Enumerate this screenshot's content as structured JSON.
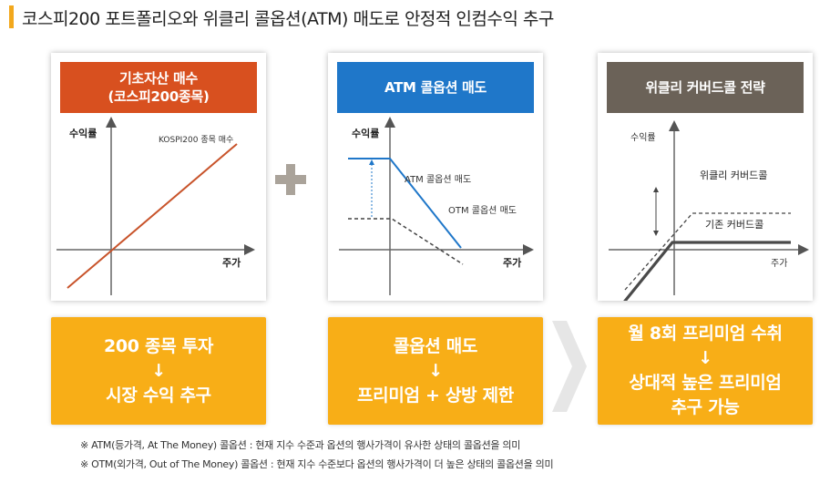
{
  "title": "코스피200 포트폴리오와 위클리 콜옵션(ATM) 매도로 안정적 인컴수익 추구",
  "colors": {
    "accent": "#f2a81d",
    "orange_box": "#f8ae17",
    "header1": "#d8501f",
    "header2": "#1f77c9",
    "header3": "#6b6258"
  },
  "panels": [
    {
      "header_line1": "기초자산 매수",
      "header_line2": "(코스피200종목)",
      "y_label": "수익률",
      "x_label": "주가",
      "line_label": "KOSPI200 종목 매수"
    },
    {
      "header": "ATM 콜옵션 매도",
      "y_label": "수익률",
      "x_label": "주가",
      "atm_label": "ATM 콜옵션 매도",
      "otm_label": "OTM 콜옵션 매도"
    },
    {
      "header": "위클리 커버드콜 전략",
      "y_label": "수익률",
      "x_label": "주가",
      "weekly_label": "위클리 커버드콜",
      "basic_label": "기존 커버드콜"
    }
  ],
  "boxes": [
    {
      "line1": "200 종목 투자",
      "arrow": "↓",
      "line2": "시장 수익 추구"
    },
    {
      "line1": "콜옵션 매도",
      "arrow": "↓",
      "line2": "프리미엄 + 상방 제한"
    },
    {
      "line1": "월 8회 프리미엄 수취",
      "arrow": "↓",
      "line2": "상대적 높은 프리미엄",
      "line3": "추구 가능"
    }
  ],
  "notes": [
    "※ ATM(등가격, At The Money) 콜옵션 : 현재 지수 수준과 옵션의 행사가격이 유사한 상태의 콜옵션을 의미",
    "※ OTM(외가격, Out of The Money) 콜옵션 : 현재 지수 수준보다 옵션의 행사가격이 더 높은 상태의 콜옵션을 의미"
  ]
}
